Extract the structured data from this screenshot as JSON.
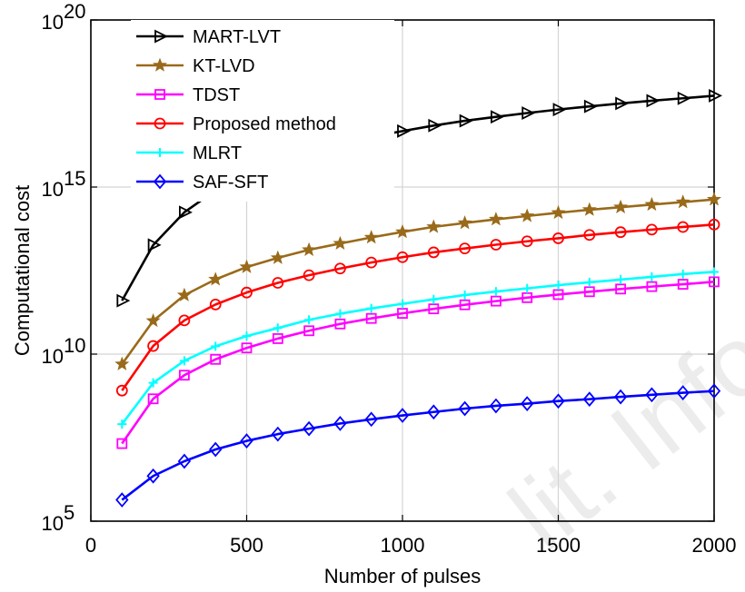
{
  "chart_data": {
    "type": "line",
    "xlabel": "Number of pulses",
    "ylabel": "Computational cost",
    "x_ticks": [
      "0",
      "500",
      "1000",
      "1500",
      "2000"
    ],
    "y_ticks": [
      {
        "base": "10",
        "exp": "5"
      },
      {
        "base": "10",
        "exp": "10"
      },
      {
        "base": "10",
        "exp": "15"
      },
      {
        "base": "10",
        "exp": "20"
      }
    ],
    "xlim": [
      0,
      2000
    ],
    "ylim": [
      100000,
      100000000000000000000
    ],
    "yscale": "log",
    "grid": true,
    "legend_position": "top-left",
    "x": [
      100,
      200,
      300,
      400,
      500,
      600,
      700,
      800,
      900,
      1000,
      1100,
      1200,
      1300,
      1400,
      1500,
      1600,
      1700,
      1800,
      1900,
      2000
    ],
    "series": [
      {
        "name": "MART-LVT",
        "color": "#000000",
        "marker": "triangle-right",
        "values": [
          398000000000.0,
          18400000000000.0,
          175000000000000.0,
          792000000000000.0,
          2560000000000000.0,
          6070000000000000.0,
          1.14e+16,
          1.99e+16,
          3.18e+16,
          4.73e+16,
          6.91e+16,
          9.59e+16,
          1.26e+17,
          1.64e+17,
          2.09e+17,
          2.59e+17,
          3.17e+17,
          3.84e+17,
          4.53e+17,
          5.41e+17
        ]
      },
      {
        "name": "KT-LVD",
        "color": "#996a1a",
        "marker": "star",
        "values": [
          5010000000.0,
          99100000000.0,
          579000000000.0,
          1720000000000.0,
          4040000000000.0,
          7570000000000.0,
          13200000000000.0,
          20400000000000.0,
          31000000000000.0,
          45400000000000.0,
          64200000000000.0,
          84100000000000.0,
          108000000000000.0,
          136000000000000.0,
          170000000000000.0,
          209000000000000.0,
          250000000000000.0,
          299000000000000.0,
          354000000000000.0,
          425000000000000.0
        ]
      },
      {
        "name": "TDST",
        "color": "#ff00ff",
        "marker": "square",
        "values": [
          21000000.0,
          459000000.0,
          2340000000.0,
          6970000000.0,
          15300000000.0,
          29100000000.0,
          50000000000.0,
          80000000000.0,
          117000000000.0,
          166000000000.0,
          226000000000.0,
          299000000000.0,
          386000000000.0,
          489000000000.0,
          605000000000.0,
          737000000000.0,
          887000000000.0,
          1050000000000.0,
          1230000000000.0,
          1460000000000.0
        ]
      },
      {
        "name": "Proposed method",
        "color": "#ff0000",
        "marker": "circle",
        "values": [
          810000000.0,
          17500000000.0,
          102000000000.0,
          305000000000.0,
          697000000000.0,
          1360000000000.0,
          2300000000000.0,
          3640000000000.0,
          5520000000000.0,
          7960000000000.0,
          11100000000000.0,
          14500000000000.0,
          18800000000000.0,
          23800000000000.0,
          29300000000000.0,
          36800000000000.0,
          44700000000000.0,
          53200000000000.0,
          63800000000000.0,
          75300000000000.0
        ]
      },
      {
        "name": "MLRT",
        "color": "#00ffff",
        "marker": "plus",
        "values": [
          80400000.0,
          1380000000.0,
          6320000000.0,
          17200000000.0,
          34700000000.0,
          60200000000.0,
          106000000000.0,
          162000000000.0,
          233000000000.0,
          320000000000.0,
          435000000000.0,
          587000000000.0,
          745000000000.0,
          926000000000.0,
          1160000000000.0,
          1410000000000.0,
          1700000000000.0,
          2050000000000.0,
          2490000000000.0,
          2890000000000.0
        ]
      },
      {
        "name": "SAF-SFT",
        "color": "#0000ff",
        "marker": "diamond",
        "values": [
          434000.0,
          2250000.0,
          6220000.0,
          14000000.0,
          25300000.0,
          40400000.0,
          58700000.0,
          83900000.0,
          112000000.0,
          146000000.0,
          185000000.0,
          234000000.0,
          283000000.0,
          329000000.0,
          393000000.0,
          448000000.0,
          526000000.0,
          607000000.0,
          697000000.0,
          786000000.0
        ]
      }
    ]
  }
}
